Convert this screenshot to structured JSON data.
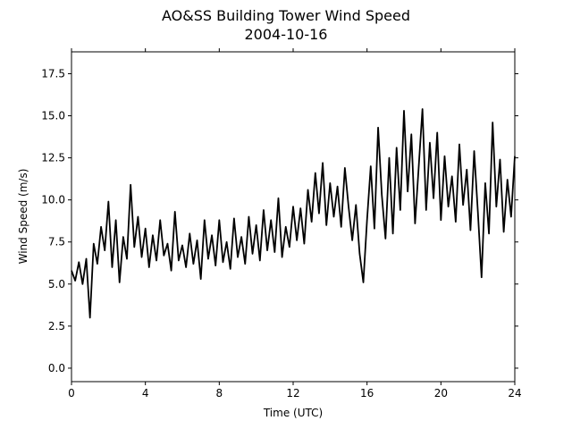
{
  "chart_data": {
    "type": "line",
    "title": "AO&SS Building Tower Wind Speed",
    "subtitle": "2004-10-16",
    "x_label": "Time (UTC)",
    "y_label": "Wind Speed (m/s)",
    "x": [
      0,
      0.2,
      0.4,
      0.6,
      0.8,
      1,
      1.2,
      1.4,
      1.6,
      1.8,
      2,
      2.2,
      2.4,
      2.6,
      2.8,
      3,
      3.2,
      3.4,
      3.6,
      3.8,
      4,
      4.2,
      4.4,
      4.6,
      4.8,
      5,
      5.2,
      5.4,
      5.6,
      5.8,
      6,
      6.2,
      6.4,
      6.6,
      6.8,
      7,
      7.2,
      7.4,
      7.6,
      7.8,
      8,
      8.2,
      8.4,
      8.6,
      8.8,
      9,
      9.2,
      9.4,
      9.6,
      9.8,
      10,
      10.2,
      10.4,
      10.6,
      10.8,
      11,
      11.2,
      11.4,
      11.6,
      11.8,
      12,
      12.2,
      12.4,
      12.6,
      12.8,
      13,
      13.2,
      13.4,
      13.6,
      13.8,
      14,
      14.2,
      14.4,
      14.6,
      14.8,
      15,
      15.2,
      15.4,
      15.6,
      15.8,
      16,
      16.2,
      16.4,
      16.6,
      16.8,
      17,
      17.2,
      17.4,
      17.6,
      17.8,
      18,
      18.2,
      18.4,
      18.6,
      18.8,
      19,
      19.2,
      19.4,
      19.6,
      19.8,
      20,
      20.2,
      20.4,
      20.6,
      20.8,
      21,
      21.2,
      21.4,
      21.6,
      21.8,
      22,
      22.2,
      22.4,
      22.6,
      22.8,
      23,
      23.2,
      23.4,
      23.6,
      23.8,
      24
    ],
    "series": [
      {
        "name": "Wind Speed",
        "color": "#000000",
        "values": [
          5.8,
          5.2,
          6.3,
          5.0,
          6.5,
          3.0,
          7.4,
          6.2,
          8.4,
          7.0,
          9.9,
          6.0,
          8.8,
          5.1,
          7.8,
          6.5,
          10.9,
          7.2,
          9.0,
          6.6,
          8.3,
          6.0,
          7.9,
          6.4,
          8.8,
          6.7,
          7.4,
          5.8,
          9.3,
          6.4,
          7.3,
          6.0,
          8.0,
          6.2,
          7.6,
          5.3,
          8.8,
          6.5,
          7.9,
          6.1,
          8.8,
          6.3,
          7.5,
          5.9,
          8.9,
          6.6,
          7.8,
          6.2,
          9.0,
          6.8,
          8.5,
          6.4,
          9.4,
          7.0,
          8.8,
          6.9,
          10.1,
          6.6,
          8.4,
          7.2,
          9.6,
          7.6,
          9.5,
          7.4,
          10.6,
          8.7,
          11.6,
          9.2,
          12.2,
          8.5,
          11.0,
          9.0,
          10.8,
          8.4,
          11.9,
          9.6,
          7.6,
          9.7,
          6.8,
          5.1,
          8.8,
          12.0,
          8.3,
          14.3,
          10.3,
          7.7,
          12.5,
          8.0,
          13.1,
          9.4,
          15.3,
          10.5,
          13.9,
          8.6,
          12.0,
          15.4,
          9.4,
          13.4,
          10.1,
          14.0,
          8.8,
          12.6,
          9.6,
          11.4,
          8.7,
          13.3,
          9.7,
          11.8,
          8.2,
          12.9,
          9.3,
          5.4,
          11.0,
          8.0,
          14.6,
          9.6,
          12.4,
          8.1,
          11.2,
          9.0,
          12.6
        ]
      }
    ],
    "xlim": [
      0,
      24
    ],
    "xticks": [
      0,
      4,
      8,
      12,
      16,
      20,
      24
    ],
    "ylim": [
      -0.8,
      18.8
    ],
    "yticks": [
      {
        "value": 0,
        "label": "0.0"
      },
      2.5,
      {
        "value": 5,
        "label": "5.0"
      },
      7.5,
      {
        "value": 10,
        "label": "10.0"
      },
      12.5,
      {
        "value": 15,
        "label": "15.0"
      },
      17.5
    ],
    "grid": false
  }
}
